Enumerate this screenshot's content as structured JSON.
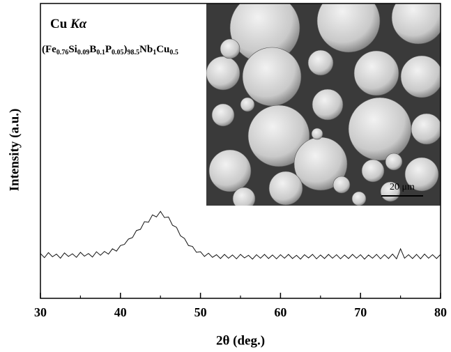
{
  "chart_data": {
    "type": "line",
    "xlabel": "2θ (deg.)",
    "ylabel": "Intensity (a.u.)",
    "label": [
      "Cu ",
      "Kα"
    ],
    "composition": [
      [
        "(Fe",
        "0.76"
      ],
      [
        "Si",
        "0.09"
      ],
      [
        "B",
        "0.1"
      ],
      [
        "P",
        "0.05"
      ],
      [
        ")",
        "98.5"
      ],
      [
        "Nb",
        "1"
      ],
      [
        "Cu",
        "0.5"
      ]
    ],
    "scale_bar": "20 μm",
    "xlim": [
      30,
      80
    ],
    "xticks": [
      30,
      40,
      50,
      60,
      70,
      80
    ],
    "xminor": [
      35,
      45,
      55,
      65,
      75
    ],
    "ylim": [
      0,
      100
    ],
    "color": "#111111",
    "x": [
      30,
      30.5,
      31,
      31.5,
      32,
      32.5,
      33,
      33.5,
      34,
      34.5,
      35,
      35.5,
      36,
      36.5,
      37,
      37.5,
      38,
      38.5,
      39,
      39.5,
      40,
      40.5,
      41,
      41.5,
      42,
      42.5,
      43,
      43.5,
      44,
      44.5,
      45,
      45.5,
      46,
      46.5,
      47,
      47.5,
      48,
      48.5,
      49,
      49.5,
      50,
      50.5,
      51,
      51.5,
      52,
      52.5,
      53,
      53.5,
      54,
      54.5,
      55,
      55.5,
      56,
      56.5,
      57,
      57.5,
      58,
      58.5,
      59,
      59.5,
      60,
      60.5,
      61,
      61.5,
      62,
      62.5,
      63,
      63.5,
      64,
      64.5,
      65,
      65.5,
      66,
      66.5,
      67,
      67.5,
      68,
      68.5,
      69,
      69.5,
      70,
      70.5,
      71,
      71.5,
      72,
      72.5,
      73,
      73.5,
      74,
      74.5,
      75,
      75.5,
      76,
      76.5,
      77,
      77.5,
      78,
      78.5,
      79,
      79.5,
      80
    ],
    "values": [
      15.2,
      13.8,
      15.5,
      14.1,
      15.0,
      13.6,
      15.4,
      14.2,
      15.1,
      13.9,
      15.6,
      14.3,
      15.2,
      14.0,
      15.8,
      14.6,
      15.9,
      15.0,
      16.8,
      16.0,
      17.9,
      18.3,
      20.1,
      20.6,
      23.0,
      23.4,
      26.0,
      25.8,
      28.3,
      27.6,
      29.5,
      27.4,
      27.6,
      24.8,
      24.1,
      21.2,
      20.3,
      17.9,
      17.6,
      15.6,
      15.8,
      14.2,
      15.3,
      13.9,
      14.8,
      13.5,
      14.9,
      13.6,
      14.7,
      13.4,
      14.9,
      13.7,
      14.6,
      13.3,
      14.8,
      13.6,
      14.9,
      13.5,
      14.7,
      13.4,
      14.8,
      13.6,
      14.9,
      13.5,
      14.6,
      13.3,
      14.8,
      13.7,
      14.9,
      13.4,
      14.7,
      13.5,
      14.9,
      13.6,
      14.8,
      13.4,
      14.7,
      13.5,
      14.9,
      13.6,
      14.8,
      13.3,
      14.7,
      13.6,
      14.9,
      13.4,
      14.8,
      13.5,
      15.0,
      13.4,
      16.8,
      13.6,
      14.8,
      13.5,
      14.9,
      13.4,
      15.0,
      13.6,
      14.8,
      13.5,
      14.9
    ]
  }
}
